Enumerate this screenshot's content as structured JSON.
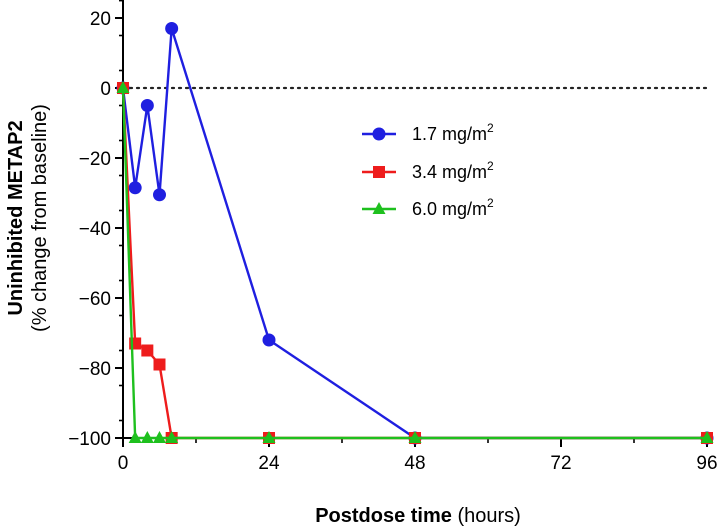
{
  "chart_data": {
    "type": "line",
    "title": "",
    "xlabel_bold": "Postdose time",
    "xlabel_unit": " (hours)",
    "ylabel_bold": "Uninhibited METAP2",
    "ylabel_sub": "(% change from baseline)",
    "xlim": [
      0,
      96
    ],
    "ylim": [
      -100,
      20
    ],
    "xticks": [
      0,
      24,
      48,
      72,
      96
    ],
    "yticks": [
      20,
      0,
      -20,
      -40,
      -60,
      -80,
      -100
    ],
    "ytick_labels": [
      "20",
      "0",
      "−20",
      "−40",
      "−60",
      "−80",
      "−100"
    ],
    "reference_line": 0,
    "legend_position": "upper-center-right",
    "series": [
      {
        "name": "1.7 mg/m",
        "superscript": "2",
        "color": "#1f1fe0",
        "marker": "circle",
        "x": [
          0,
          2,
          4,
          6,
          8,
          24,
          48,
          96
        ],
        "y": [
          0,
          -28.5,
          -5,
          -30.5,
          17,
          -72,
          -100,
          -100
        ]
      },
      {
        "name": "3.4 mg/m",
        "superscript": "2",
        "color": "#ee1c1c",
        "marker": "square",
        "x": [
          0,
          2,
          4,
          6,
          8,
          24,
          48,
          96
        ],
        "y": [
          0,
          -73,
          -75,
          -79,
          -100,
          -100,
          -100,
          -100
        ]
      },
      {
        "name": "6.0 mg/m",
        "superscript": "2",
        "color": "#1ec01e",
        "marker": "triangle",
        "x": [
          0,
          2,
          4,
          6,
          8,
          24,
          48,
          96
        ],
        "y": [
          0,
          -100,
          -100,
          -100,
          -100,
          -100,
          -100,
          -100
        ]
      }
    ]
  }
}
